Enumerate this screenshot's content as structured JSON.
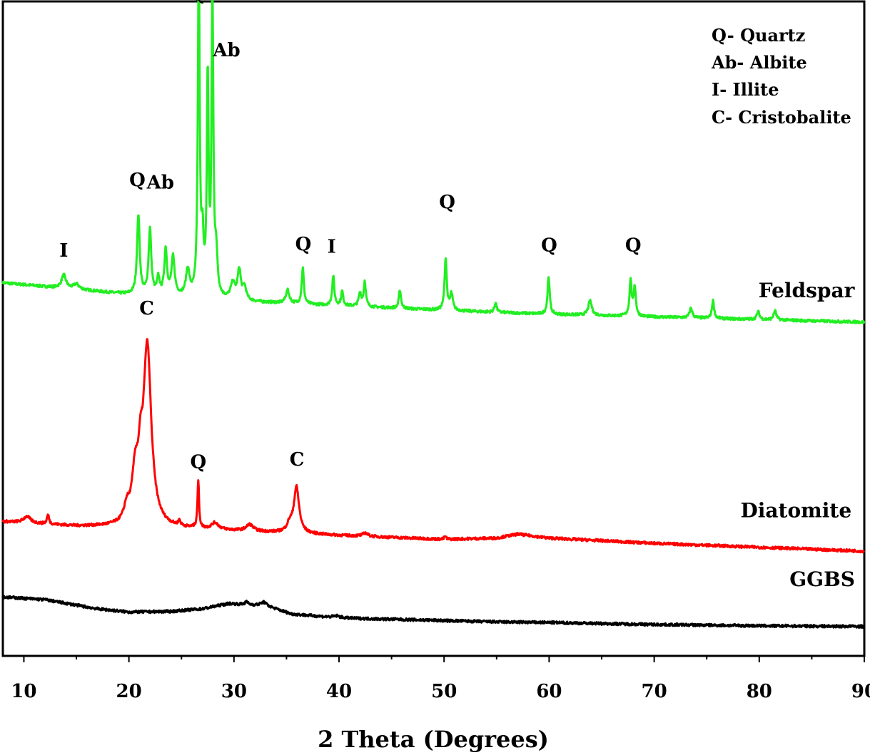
{
  "chart_data": {
    "type": "line",
    "xlabel": "2 Theta (Degrees)",
    "ylabel": "",
    "xlim": [
      8,
      90
    ],
    "ylim": [
      0,
      1000
    ],
    "x_ticks": [
      "10",
      "20",
      "30",
      "40",
      "50",
      "60",
      "70",
      "80",
      "90"
    ],
    "legend": {
      "placement": "top-right",
      "entries": [
        "Q- Quartz",
        "Ab- Albite",
        "I- Illite",
        "C- Cristobalite"
      ]
    },
    "series": [
      {
        "name": "Feldspar",
        "color": "#22ee22",
        "baseline": [
          [
            8,
            570
          ],
          [
            15,
            560
          ],
          [
            20,
            552
          ],
          [
            25,
            548
          ],
          [
            30,
            542
          ],
          [
            40,
            535
          ],
          [
            50,
            528
          ],
          [
            60,
            522
          ],
          [
            70,
            518
          ],
          [
            80,
            514
          ],
          [
            90,
            510
          ]
        ],
        "peaks": [
          {
            "x": 13.8,
            "h": 20,
            "w": 0.25
          },
          {
            "x": 15.0,
            "h": 8,
            "w": 0.3
          },
          {
            "x": 20.9,
            "h": 122,
            "w": 0.15
          },
          {
            "x": 22.0,
            "h": 100,
            "w": 0.15
          },
          {
            "x": 22.8,
            "h": 25,
            "w": 0.15
          },
          {
            "x": 23.5,
            "h": 70,
            "w": 0.15
          },
          {
            "x": 24.2,
            "h": 58,
            "w": 0.18
          },
          {
            "x": 25.6,
            "h": 40,
            "w": 0.2
          },
          {
            "x": 26.65,
            "h": 528,
            "w": 0.1
          },
          {
            "x": 27.0,
            "h": 80,
            "w": 0.12
          },
          {
            "x": 27.5,
            "h": 330,
            "w": 0.1
          },
          {
            "x": 27.95,
            "h": 456,
            "w": 0.1
          },
          {
            "x": 28.3,
            "h": 60,
            "w": 0.15
          },
          {
            "x": 29.9,
            "h": 25,
            "w": 0.25
          },
          {
            "x": 30.5,
            "h": 45,
            "w": 0.18
          },
          {
            "x": 31.0,
            "h": 20,
            "w": 0.2
          },
          {
            "x": 35.1,
            "h": 20,
            "w": 0.2
          },
          {
            "x": 36.55,
            "h": 55,
            "w": 0.12
          },
          {
            "x": 39.45,
            "h": 45,
            "w": 0.12
          },
          {
            "x": 40.3,
            "h": 22,
            "w": 0.12
          },
          {
            "x": 42.0,
            "h": 20,
            "w": 0.15
          },
          {
            "x": 42.45,
            "h": 38,
            "w": 0.12
          },
          {
            "x": 45.8,
            "h": 28,
            "w": 0.12
          },
          {
            "x": 50.15,
            "h": 80,
            "w": 0.12
          },
          {
            "x": 50.7,
            "h": 25,
            "w": 0.15
          },
          {
            "x": 54.9,
            "h": 15,
            "w": 0.12
          },
          {
            "x": 59.95,
            "h": 58,
            "w": 0.12
          },
          {
            "x": 63.9,
            "h": 22,
            "w": 0.2
          },
          {
            "x": 67.75,
            "h": 55,
            "w": 0.12
          },
          {
            "x": 68.15,
            "h": 45,
            "w": 0.12
          },
          {
            "x": 73.5,
            "h": 15,
            "w": 0.15
          },
          {
            "x": 75.6,
            "h": 28,
            "w": 0.12
          },
          {
            "x": 79.9,
            "h": 12,
            "w": 0.15
          },
          {
            "x": 81.5,
            "h": 14,
            "w": 0.15
          }
        ]
      },
      {
        "name": "Diatomite",
        "color": "#ff0000",
        "baseline": [
          [
            8,
            205
          ],
          [
            15,
            198
          ],
          [
            20,
            196
          ],
          [
            25,
            194
          ],
          [
            30,
            191
          ],
          [
            40,
            184
          ],
          [
            50,
            178
          ],
          [
            55,
            180
          ],
          [
            57,
            186
          ],
          [
            60,
            180
          ],
          [
            70,
            172
          ],
          [
            80,
            166
          ],
          [
            90,
            160
          ]
        ],
        "peaks": [
          {
            "x": 10.3,
            "h": 10,
            "w": 0.4
          },
          {
            "x": 12.3,
            "h": 14,
            "w": 0.12
          },
          {
            "x": 19.8,
            "h": 22,
            "w": 0.3
          },
          {
            "x": 20.6,
            "h": 70,
            "w": 0.35
          },
          {
            "x": 21.1,
            "h": 60,
            "w": 0.25
          },
          {
            "x": 21.75,
            "h": 273,
            "w": 0.45
          },
          {
            "x": 24.8,
            "h": 8,
            "w": 0.12
          },
          {
            "x": 26.6,
            "h": 72,
            "w": 0.09
          },
          {
            "x": 28.2,
            "h": 10,
            "w": 0.4
          },
          {
            "x": 31.5,
            "h": 10,
            "w": 0.4
          },
          {
            "x": 35.3,
            "h": 12,
            "w": 0.3
          },
          {
            "x": 35.95,
            "h": 70,
            "w": 0.3
          },
          {
            "x": 42.5,
            "h": 5,
            "w": 0.3
          },
          {
            "x": 50.1,
            "h": 5,
            "w": 0.1
          }
        ]
      },
      {
        "name": "GGBS",
        "color": "#000000",
        "baseline": [
          [
            8,
            90
          ],
          [
            12,
            86
          ],
          [
            17,
            72
          ],
          [
            20,
            67
          ],
          [
            24,
            68
          ],
          [
            27,
            72
          ],
          [
            29.5,
            80
          ],
          [
            31.5,
            78
          ],
          [
            33,
            77
          ],
          [
            35.5,
            64
          ],
          [
            40,
            58
          ],
          [
            50,
            54
          ],
          [
            55,
            52
          ],
          [
            60,
            51
          ],
          [
            70,
            48
          ],
          [
            80,
            46
          ],
          [
            90,
            45
          ]
        ],
        "peaks": [
          {
            "x": 31.2,
            "h": 4,
            "w": 0.2
          },
          {
            "x": 32.8,
            "h": 5,
            "w": 0.3
          },
          {
            "x": 39.8,
            "h": 3,
            "w": 0.4
          }
        ]
      }
    ],
    "series_labels": [
      {
        "text": "Feldspar",
        "series": "Feldspar",
        "x": 84.5,
        "y": 548
      },
      {
        "text": "Diatomite",
        "series": "Diatomite",
        "x": 83.5,
        "y": 212
      },
      {
        "text": "GGBS",
        "series": "GGBS",
        "x": 86,
        "y": 107
      }
    ],
    "annotations": [
      {
        "text": "I",
        "x": 13.8,
        "y": 610
      },
      {
        "text": "Q",
        "x": 20.8,
        "y": 718
      },
      {
        "text": "Ab",
        "x": 23.0,
        "y": 714
      },
      {
        "text": "Q",
        "x": 26.6,
        "y": 1002
      },
      {
        "text": "Ab",
        "x": 29.3,
        "y": 916
      },
      {
        "text": "Q",
        "x": 36.6,
        "y": 620
      },
      {
        "text": "I",
        "x": 39.3,
        "y": 616
      },
      {
        "text": "Q",
        "x": 50.3,
        "y": 684
      },
      {
        "text": "Q",
        "x": 60.0,
        "y": 618
      },
      {
        "text": "Q",
        "x": 68.0,
        "y": 618
      },
      {
        "text": "C",
        "x": 21.7,
        "y": 522
      },
      {
        "text": "Q",
        "x": 26.6,
        "y": 287
      },
      {
        "text": "C",
        "x": 36.0,
        "y": 291
      }
    ]
  }
}
